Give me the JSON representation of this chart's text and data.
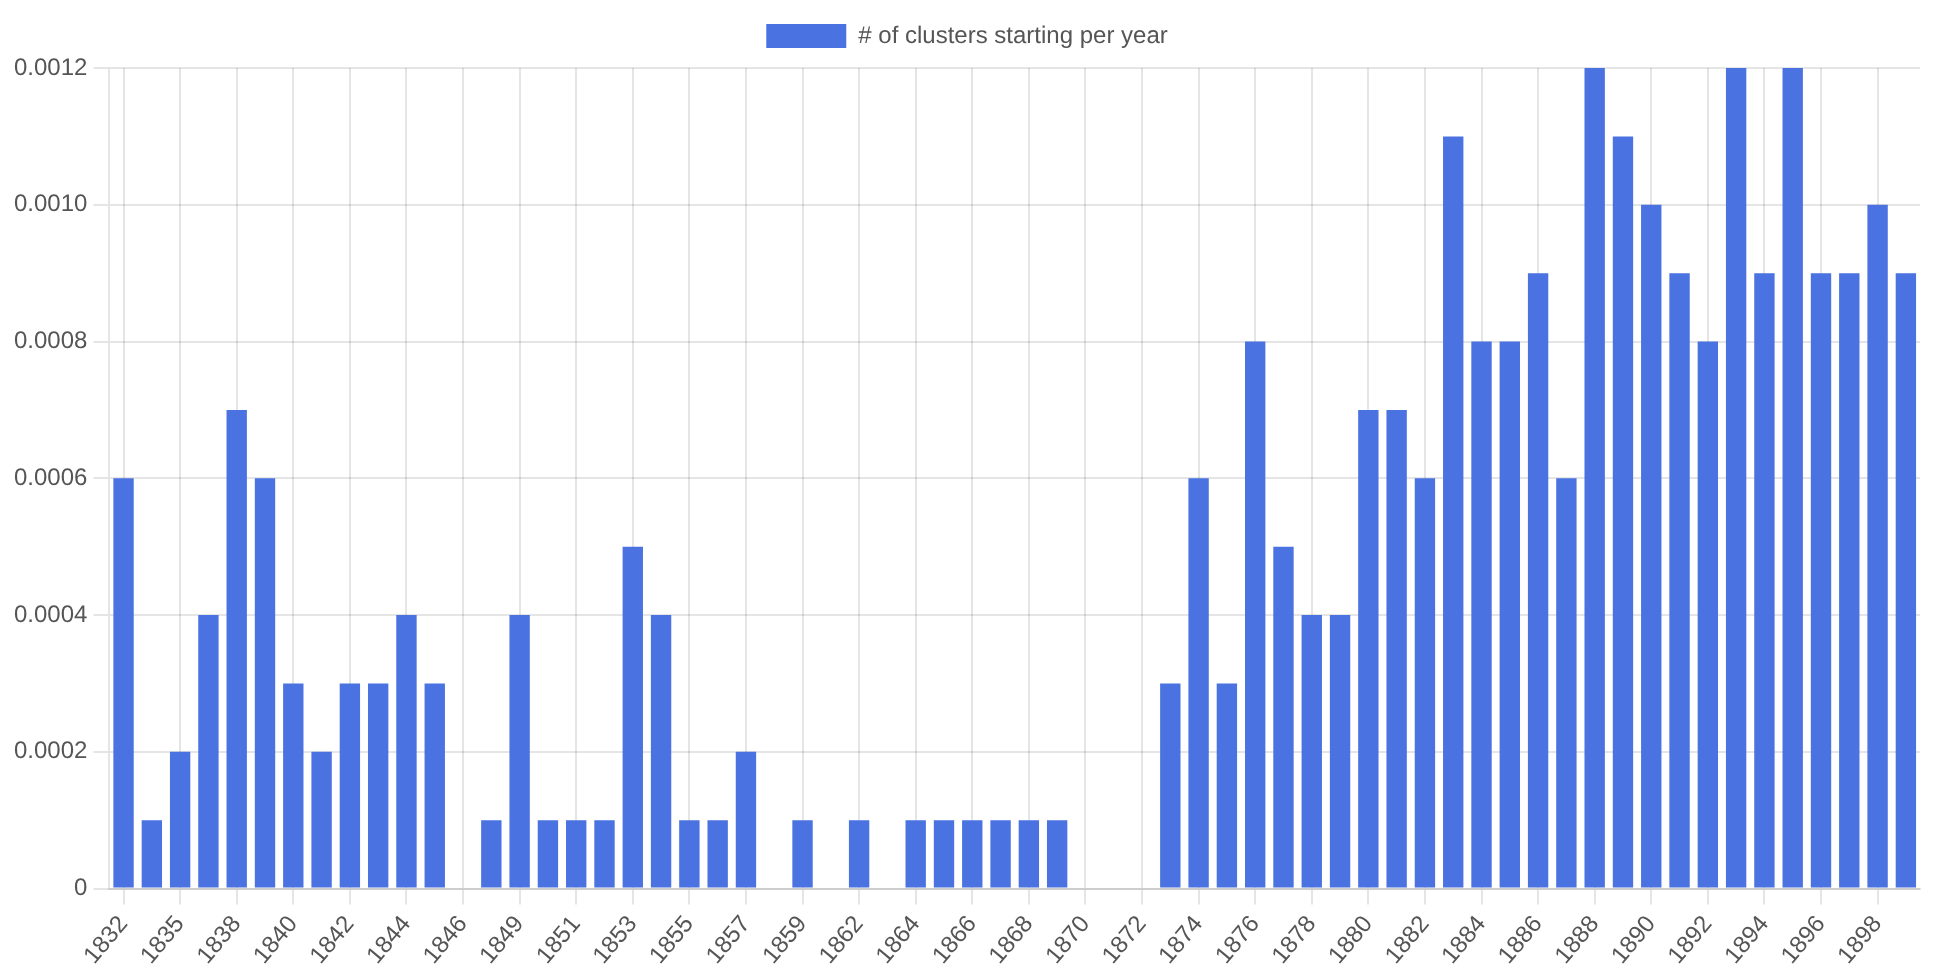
{
  "chart_data": {
    "type": "bar",
    "categories": [
      "1832",
      null,
      "1835",
      null,
      "1838",
      null,
      "1840",
      null,
      "1842",
      null,
      "1844",
      null,
      "1846",
      null,
      "1849",
      null,
      "1851",
      null,
      "1853",
      null,
      "1855",
      null,
      "1857",
      null,
      "1859",
      null,
      "1862",
      null,
      "1864",
      null,
      "1866",
      null,
      "1868",
      null,
      "1870",
      null,
      "1872",
      null,
      "1874",
      null,
      "1876",
      null,
      "1878",
      null,
      "1880",
      null,
      "1882",
      null,
      "1884",
      null,
      "1886",
      null,
      "1888",
      null,
      "1890",
      null,
      "1892",
      null,
      "1894",
      null,
      "1896",
      null,
      "1898",
      null
    ],
    "series": [
      {
        "name": "# of clusters starting per year",
        "color": "#4a72e0",
        "values": [
          0.0006,
          0.0001,
          0.0002,
          0.0004,
          0.0007,
          0.0006,
          0.0003,
          0.0002,
          0.0003,
          0.0003,
          0.0004,
          0.0003,
          0,
          0.0001,
          0.0004,
          0.0001,
          0.0001,
          0.0001,
          0.0005,
          0.0004,
          0.0001,
          0.0001,
          0.0002,
          0,
          0.0001,
          0,
          0.0001,
          0,
          0.0001,
          0.0001,
          0.0001,
          0.0001,
          0.0001,
          0.0001,
          0,
          0,
          0,
          0.0003,
          0.0006,
          0.0003,
          0.0008,
          0.0005,
          0.0004,
          0.0004,
          0.0007,
          0.0007,
          0.0006,
          0.0011,
          0.0008,
          0.0008,
          0.0009,
          0.0006,
          0.0012,
          0.0011,
          0.001,
          0.0009,
          0.0008,
          0.0012,
          0.0009,
          0.0012,
          0.0009,
          0.0009,
          0.001,
          0.0009
        ]
      }
    ],
    "ylim": [
      0,
      0.0012
    ],
    "yticks": [
      0,
      0.0002,
      0.0004,
      0.0006,
      0.0008,
      {
        "value": 0.001,
        "label": "0.0010"
      },
      0.0012
    ],
    "grid": true,
    "legend": "top"
  }
}
